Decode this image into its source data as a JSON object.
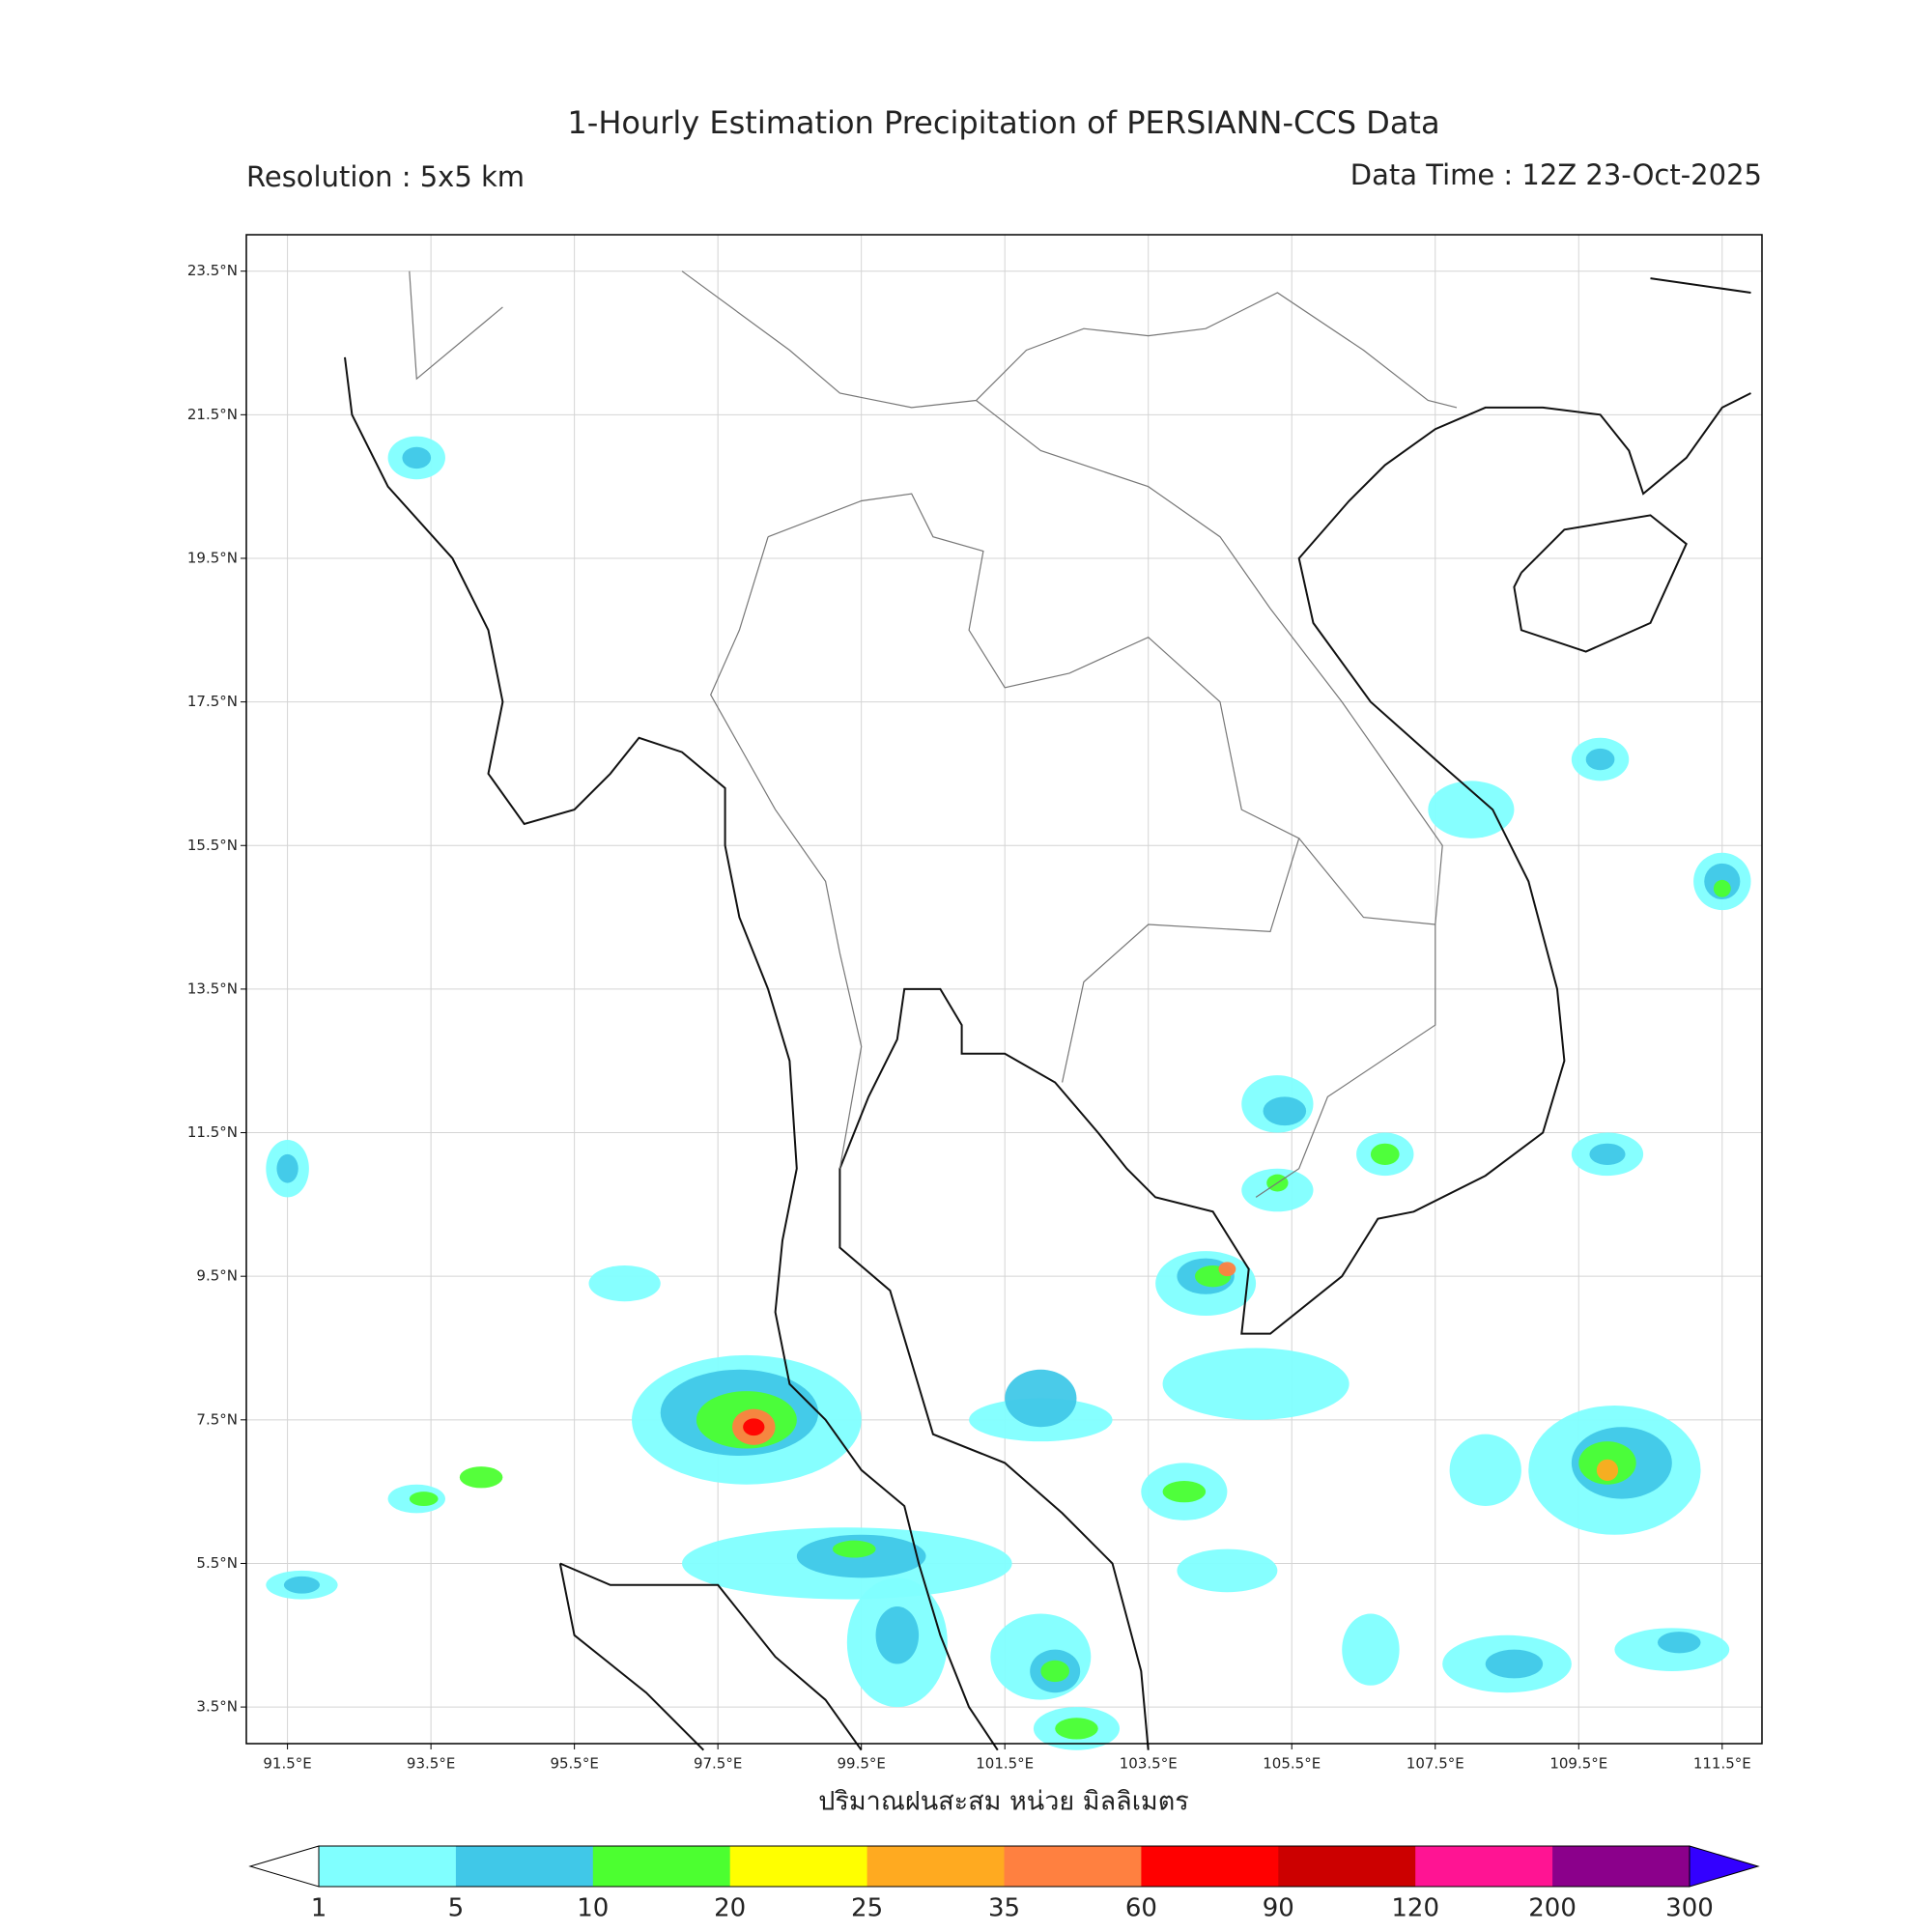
{
  "header": {
    "title": "1-Hourly Estimation Precipitation of PERSIANN-CCS Data",
    "resolution": "Resolution : 5x5 km",
    "data_time": "Data Time : 12Z 23-Oct-2025"
  },
  "map": {
    "xlabel": "ปริมาณฝนสะสม หน่วย มิลลิเมตร",
    "xticks": [
      {
        "value": 91.5,
        "label": "91.5°E"
      },
      {
        "value": 93.5,
        "label": "93.5°E"
      },
      {
        "value": 95.5,
        "label": "95.5°E"
      },
      {
        "value": 97.5,
        "label": "97.5°E"
      },
      {
        "value": 99.5,
        "label": "99.5°E"
      },
      {
        "value": 101.5,
        "label": "101.5°E"
      },
      {
        "value": 103.5,
        "label": "103.5°E"
      },
      {
        "value": 105.5,
        "label": "105.5°E"
      },
      {
        "value": 107.5,
        "label": "107.5°E"
      },
      {
        "value": 109.5,
        "label": "109.5°E"
      },
      {
        "value": 111.5,
        "label": "111.5°E"
      }
    ],
    "yticks": [
      {
        "value": 23.5,
        "label": "23.5°N"
      },
      {
        "value": 21.5,
        "label": "21.5°N"
      },
      {
        "value": 19.5,
        "label": "19.5°N"
      },
      {
        "value": 17.5,
        "label": "17.5°N"
      },
      {
        "value": 15.5,
        "label": "15.5°N"
      },
      {
        "value": 13.5,
        "label": "13.5°N"
      },
      {
        "value": 11.5,
        "label": "11.5°N"
      },
      {
        "value": 9.5,
        "label": "9.5°N"
      },
      {
        "value": 7.5,
        "label": "7.5°N"
      },
      {
        "value": 5.5,
        "label": "5.5°N"
      },
      {
        "value": 3.5,
        "label": "3.5°N"
      }
    ],
    "grid": true
  },
  "colorbar": {
    "levels": [
      1,
      5,
      10,
      20,
      25,
      35,
      60,
      90,
      120,
      200,
      300
    ],
    "colors": [
      "#80ffff",
      "#40c8e8",
      "#4cff30",
      "#ffff00",
      "#ffaa20",
      "#ff8040",
      "#ff0000",
      "#cc0000",
      "#ff1493",
      "#8b008b"
    ],
    "under_color": "#ffffff",
    "over_color": "#3300ff"
  }
}
